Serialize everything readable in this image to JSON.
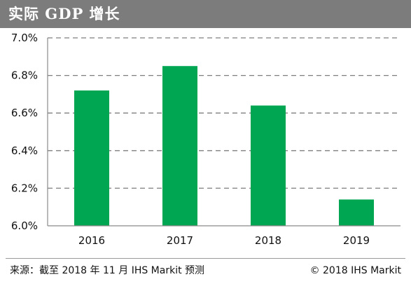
{
  "header": {
    "title": "实际 GDP 增长"
  },
  "footer": {
    "source": "来源：截至 2018 年 11 月 IHS Markit 预测",
    "copyright": "© 2018 IHS Markit"
  },
  "colors": {
    "bar": "#00a651",
    "title_bar": "#7c7c7c",
    "gridline": "#7f7f7f"
  },
  "chart_data": {
    "type": "bar",
    "title": "实际 GDP 增长",
    "categories": [
      "2016",
      "2017",
      "2018",
      "2019"
    ],
    "values": [
      6.72,
      6.85,
      6.64,
      6.14
    ],
    "unit": "%",
    "ylim": [
      6.0,
      7.0
    ],
    "yticks": [
      6.0,
      6.2,
      6.4,
      6.6,
      6.8,
      7.0
    ],
    "ytick_labels": [
      "6.0%",
      "6.2%",
      "6.4%",
      "6.6%",
      "6.8%",
      "7.0%"
    ],
    "grid": true,
    "grid_style": "dashed",
    "legend": "none"
  }
}
